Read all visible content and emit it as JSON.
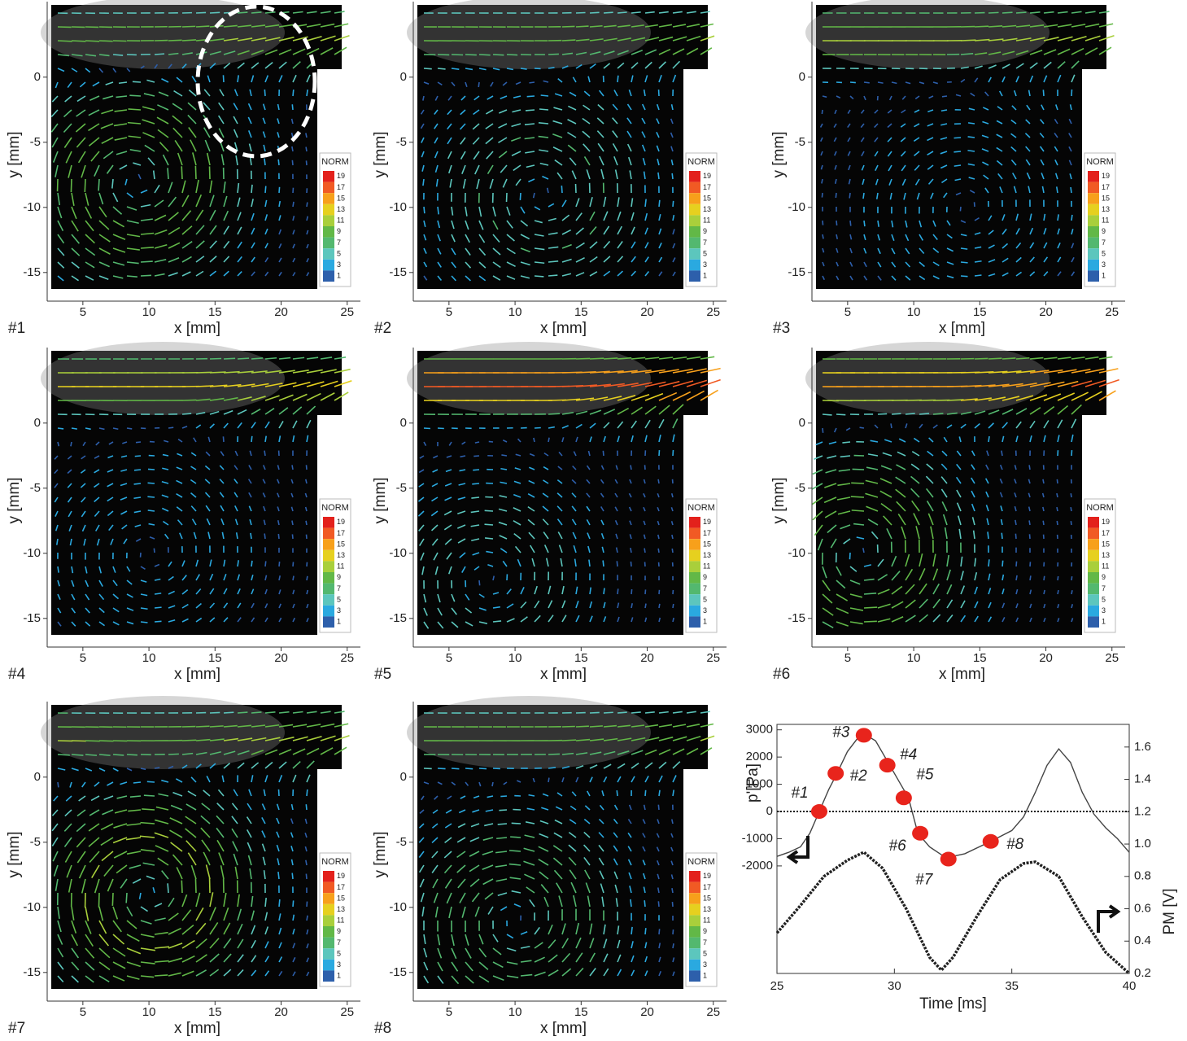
{
  "chart_data": [
    {
      "type": "quiver",
      "label": "#1",
      "xlabel": "x [mm]",
      "ylabel": "y [mm]",
      "xlim": [
        2.3,
        26
      ],
      "ylim": [
        -17.2,
        5.8
      ],
      "xticks": [
        5,
        10,
        15,
        20,
        25
      ],
      "yticks": [
        0,
        -5,
        -10,
        -15
      ],
      "colorbar": {
        "title": "NORM",
        "ticks": [
          19,
          17,
          15,
          13,
          11,
          9,
          7,
          5,
          3,
          1
        ],
        "colors": [
          "#e3211c",
          "#f15a24",
          "#f7a01b",
          "#e6d01f",
          "#a9cf3b",
          "#62b847",
          "#53b86f",
          "#5cc6bd",
          "#2aa9e0",
          "#2d5fab"
        ]
      }
    },
    {
      "type": "quiver",
      "label": "#2",
      "xlabel": "x [mm]",
      "ylabel": "y [mm]",
      "xlim": [
        2.3,
        26
      ],
      "ylim": [
        -17.2,
        5.8
      ],
      "xticks": [
        5,
        10,
        15,
        20,
        25
      ],
      "yticks": [
        0,
        -5,
        -10,
        -15
      ],
      "colorbar": {
        "title": "NORM",
        "ticks": [
          19,
          17,
          15,
          13,
          11,
          9,
          7,
          5,
          3,
          1
        ],
        "colors": [
          "#e3211c",
          "#f15a24",
          "#f7a01b",
          "#e6d01f",
          "#a9cf3b",
          "#62b847",
          "#53b86f",
          "#5cc6bd",
          "#2aa9e0",
          "#2d5fab"
        ]
      }
    },
    {
      "type": "quiver",
      "label": "#3",
      "xlabel": "x [mm]",
      "ylabel": "y [mm]",
      "xlim": [
        2.3,
        26
      ],
      "ylim": [
        -17.2,
        5.8
      ],
      "xticks": [
        5,
        10,
        15,
        20,
        25
      ],
      "yticks": [
        0,
        -5,
        -10,
        -15
      ],
      "colorbar": {
        "title": "NORM",
        "ticks": [
          19,
          17,
          15,
          13,
          11,
          9,
          7,
          5,
          3,
          1
        ],
        "colors": [
          "#e3211c",
          "#f15a24",
          "#f7a01b",
          "#e6d01f",
          "#a9cf3b",
          "#62b847",
          "#53b86f",
          "#5cc6bd",
          "#2aa9e0",
          "#2d5fab"
        ]
      }
    },
    {
      "type": "quiver",
      "label": "#4",
      "xlabel": "x [mm]",
      "ylabel": "y [mm]",
      "xlim": [
        2.3,
        26
      ],
      "ylim": [
        -17.2,
        5.8
      ],
      "xticks": [
        5,
        10,
        15,
        20,
        25
      ],
      "yticks": [
        0,
        -5,
        -10,
        -15
      ],
      "colorbar": {
        "title": "NORM",
        "ticks": [
          19,
          17,
          15,
          13,
          11,
          9,
          7,
          5,
          3,
          1
        ],
        "colors": [
          "#e3211c",
          "#f15a24",
          "#f7a01b",
          "#e6d01f",
          "#a9cf3b",
          "#62b847",
          "#53b86f",
          "#5cc6bd",
          "#2aa9e0",
          "#2d5fab"
        ]
      }
    },
    {
      "type": "quiver",
      "label": "#5",
      "xlabel": "x [mm]",
      "ylabel": "y [mm]",
      "xlim": [
        2.3,
        26
      ],
      "ylim": [
        -17.2,
        5.8
      ],
      "xticks": [
        5,
        10,
        15,
        20,
        25
      ],
      "yticks": [
        0,
        -5,
        -10,
        -15
      ],
      "colorbar": {
        "title": "NORM",
        "ticks": [
          19,
          17,
          15,
          13,
          11,
          9,
          7,
          5,
          3,
          1
        ],
        "colors": [
          "#e3211c",
          "#f15a24",
          "#f7a01b",
          "#e6d01f",
          "#a9cf3b",
          "#62b847",
          "#53b86f",
          "#5cc6bd",
          "#2aa9e0",
          "#2d5fab"
        ]
      }
    },
    {
      "type": "quiver",
      "label": "#6",
      "xlabel": "x [mm]",
      "ylabel": "y [mm]",
      "xlim": [
        2.3,
        26
      ],
      "ylim": [
        -17.2,
        5.8
      ],
      "xticks": [
        5,
        10,
        15,
        20,
        25
      ],
      "yticks": [
        0,
        -5,
        -10,
        -15
      ],
      "colorbar": {
        "title": "NORM",
        "ticks": [
          19,
          17,
          15,
          13,
          11,
          9,
          7,
          5,
          3,
          1
        ],
        "colors": [
          "#e3211c",
          "#f15a24",
          "#f7a01b",
          "#e6d01f",
          "#a9cf3b",
          "#62b847",
          "#53b86f",
          "#5cc6bd",
          "#2aa9e0",
          "#2d5fab"
        ]
      }
    },
    {
      "type": "quiver",
      "label": "#7",
      "xlabel": "x [mm]",
      "ylabel": "y [mm]",
      "xlim": [
        2.3,
        26
      ],
      "ylim": [
        -17.2,
        5.8
      ],
      "xticks": [
        5,
        10,
        15,
        20,
        25
      ],
      "yticks": [
        0,
        -5,
        -10,
        -15
      ],
      "colorbar": {
        "title": "NORM",
        "ticks": [
          19,
          17,
          15,
          13,
          11,
          9,
          7,
          5,
          3,
          1
        ],
        "colors": [
          "#e3211c",
          "#f15a24",
          "#f7a01b",
          "#e6d01f",
          "#a9cf3b",
          "#62b847",
          "#53b86f",
          "#5cc6bd",
          "#2aa9e0",
          "#2d5fab"
        ]
      }
    },
    {
      "type": "quiver",
      "label": "#8",
      "xlabel": "x [mm]",
      "ylabel": "y [mm]",
      "xlim": [
        2.3,
        26
      ],
      "ylim": [
        -17.2,
        5.8
      ],
      "xticks": [
        5,
        10,
        15,
        20,
        25
      ],
      "yticks": [
        0,
        -5,
        -10,
        -15
      ],
      "colorbar": {
        "title": "NORM",
        "ticks": [
          19,
          17,
          15,
          13,
          11,
          9,
          7,
          5,
          3,
          1
        ],
        "colors": [
          "#e3211c",
          "#f15a24",
          "#f7a01b",
          "#e6d01f",
          "#a9cf3b",
          "#62b847",
          "#53b86f",
          "#5cc6bd",
          "#2aa9e0",
          "#2d5fab"
        ]
      }
    },
    {
      "type": "line",
      "xlabel": "Time [ms]",
      "ylabel": "p'[Pa]",
      "y2label": "PM [V]",
      "xlim": [
        25,
        40
      ],
      "xticks": [
        25,
        30,
        35,
        40
      ],
      "ylim": [
        -5950,
        3200
      ],
      "yticks": [
        3000,
        2000,
        1000,
        0,
        -1000,
        -2000
      ],
      "y2lim": [
        0.2,
        1.74
      ],
      "y2ticks": [
        0.2,
        0.4,
        0.6,
        0.8,
        {
          "value": 1,
          "label": "1.0"
        },
        1.2,
        1.4,
        1.6
      ],
      "hline": 0,
      "series": [
        {
          "color": "#444444",
          "x": [
            25,
            25.5,
            26,
            26.4,
            26.8,
            27.2,
            27.5,
            28,
            28.4,
            28.7,
            29.2,
            29.8,
            30.2,
            30.6,
            31,
            31.5,
            32.2,
            33,
            34.1,
            35,
            35.5,
            36,
            36.5,
            37,
            37.5,
            38,
            38.5,
            39,
            39.5,
            40
          ],
          "values": [
            -1650,
            -1500,
            -1300,
            -800,
            0,
            800,
            1300,
            2200,
            2650,
            2850,
            2600,
            1700,
            1100,
            500,
            -800,
            -1300,
            -1700,
            -1550,
            -1100,
            -700,
            -200,
            700,
            1700,
            2300,
            1800,
            700,
            -100,
            -600,
            -1000,
            -1500
          ]
        },
        {
          "color": "#222222",
          "axis": "y2",
          "x": [
            25,
            26,
            27,
            28,
            28.7,
            29.5,
            30.5,
            31.5,
            32,
            32.5,
            33.5,
            34.5,
            35.5,
            36,
            37,
            38,
            39,
            40
          ],
          "values": [
            0.45,
            0.62,
            0.8,
            0.9,
            0.95,
            0.85,
            0.6,
            0.3,
            0.22,
            0.3,
            0.55,
            0.78,
            0.88,
            0.89,
            0.8,
            0.55,
            0.33,
            0.2
          ]
        },
        {
          "type": "scatter",
          "color": "#e8241c",
          "x": [
            26.8,
            27.5,
            28.7,
            29.7,
            30.4,
            31.1,
            32.3,
            34.1
          ],
          "values": [
            0,
            1400,
            2800,
            1700,
            500,
            -800,
            -1750,
            -1100
          ],
          "labels": [
            "#1",
            "#2",
            "#3",
            "#4",
            "#5",
            "#6",
            "#7",
            "#8"
          ]
        }
      ]
    }
  ]
}
